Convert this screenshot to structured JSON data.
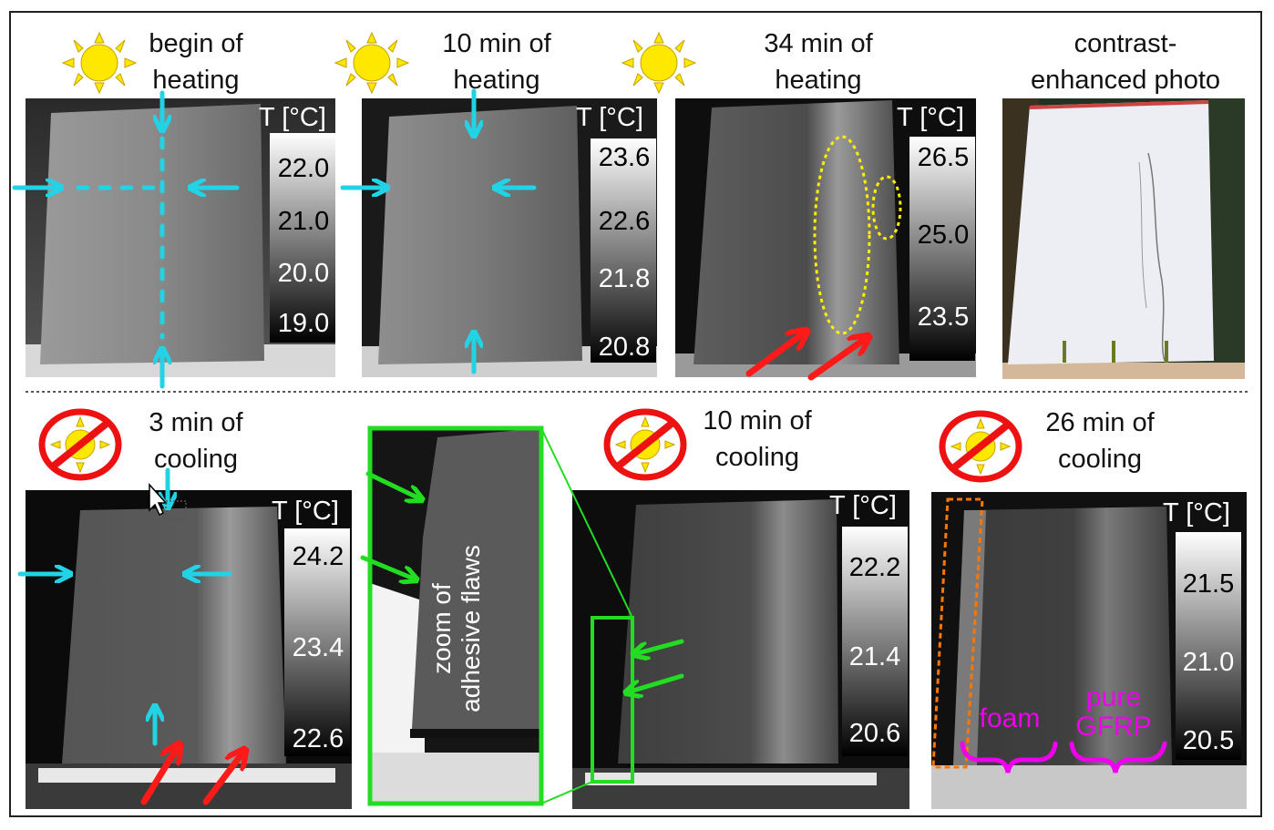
{
  "colors": {
    "arrow_cyan": "#22d3e6",
    "arrow_red": "#ff1a1a",
    "arrow_green": "#22dd22",
    "ellipse_yellow": "#ffee00",
    "foam_magenta": "#ee00ee",
    "box_orange": "#ff7700",
    "sun_yellow": "#ffe800",
    "no_sign_red": "#ee1111"
  },
  "icons": [
    "sun-icon",
    "no-sun-icon",
    "mouse-cursor-icon"
  ],
  "panels": {
    "p1": {
      "title": "begin of heating",
      "unit": "T [°C]",
      "ticks": [
        "22.0",
        "21.0",
        "20.0",
        "19.0"
      ]
    },
    "p2": {
      "title": "10 min of heating",
      "unit": "T [°C]",
      "ticks": [
        "23.6",
        "22.6",
        "21.8",
        "20.8"
      ]
    },
    "p3": {
      "title": "34 min of heating",
      "unit": "T [°C]",
      "ticks": [
        "26.5",
        "25.0",
        "23.5"
      ]
    },
    "p4": {
      "title": "contrast-enhanced photo"
    },
    "p5": {
      "title": "3 min of cooling",
      "unit": "T [°C]",
      "ticks": [
        "24.2",
        "23.4",
        "22.6"
      ]
    },
    "p6": {
      "zoom_label": "zoom of adhesive flaws"
    },
    "p7": {
      "title": "10 min of cooling",
      "unit": "T [°C]",
      "ticks": [
        "22.2",
        "21.4",
        "20.6"
      ]
    },
    "p8": {
      "title": "26 min of cooling",
      "unit": "T [°C]",
      "ticks": [
        "21.5",
        "21.0",
        "20.5"
      ],
      "foam": "foam",
      "pure_gfrp": "pure GFRP"
    }
  },
  "split_titles": {
    "p1": [
      "begin of",
      "heating"
    ],
    "p2": [
      "10 min of",
      "heating"
    ],
    "p3": [
      "34 min of",
      "heating"
    ],
    "p4": [
      "contrast-",
      "enhanced photo"
    ],
    "p5": [
      "3 min of",
      "cooling"
    ],
    "p6": [
      "zoom of",
      "adhesive flaws"
    ],
    "p7": [
      "10 min of",
      "cooling"
    ],
    "p8": [
      "26 min of",
      "cooling"
    ],
    "p8_pure": [
      "pure",
      "GFRP"
    ]
  }
}
